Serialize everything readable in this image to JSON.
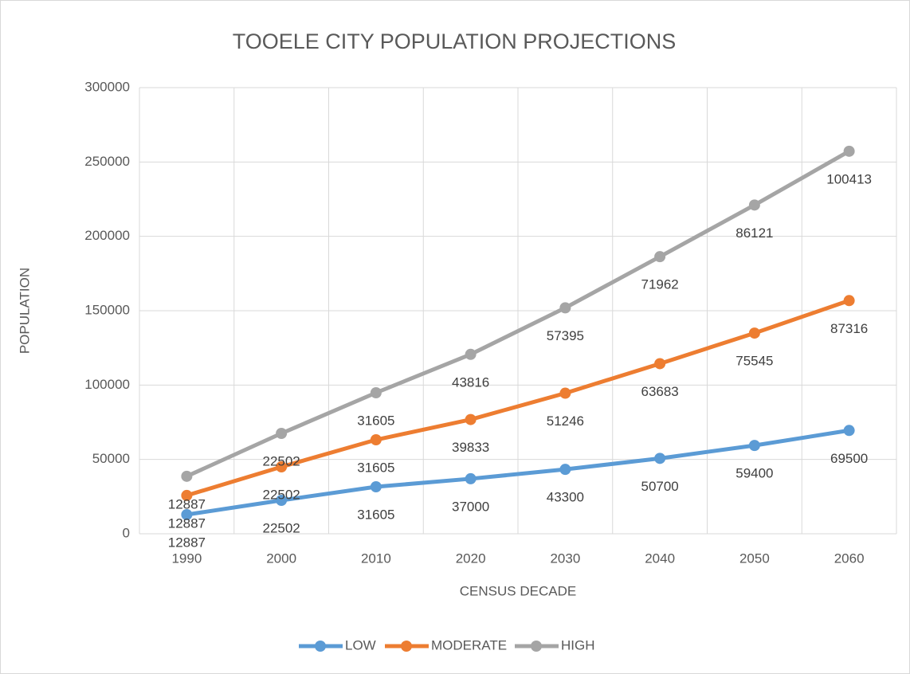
{
  "chart_data": {
    "type": "line",
    "stacked": true,
    "grid": true,
    "legend": "bottom",
    "title": "TOOELE CITY POPULATION PROJECTIONS",
    "x_label": "CENSUS DECADE",
    "y_label": "POPULATION",
    "categories": [
      "1990",
      "2000",
      "2010",
      "2020",
      "2030",
      "2040",
      "2050",
      "2060"
    ],
    "series": [
      {
        "name": "LOW",
        "color": "#5b9bd5",
        "values": [
          12887,
          22502,
          31605,
          37000,
          43300,
          50700,
          59400,
          69500
        ]
      },
      {
        "name": "MODERATE",
        "color": "#ed7d31",
        "values": [
          12887,
          22502,
          31605,
          39833,
          51246,
          63683,
          75545,
          87316
        ]
      },
      {
        "name": "HIGH",
        "color": "#a5a5a5",
        "values": [
          12887,
          22502,
          31605,
          43816,
          57395,
          71962,
          86121,
          100413
        ]
      }
    ],
    "ylim": [
      0,
      300000
    ],
    "yticks": [
      0,
      50000,
      100000,
      150000,
      200000,
      250000,
      300000
    ]
  }
}
